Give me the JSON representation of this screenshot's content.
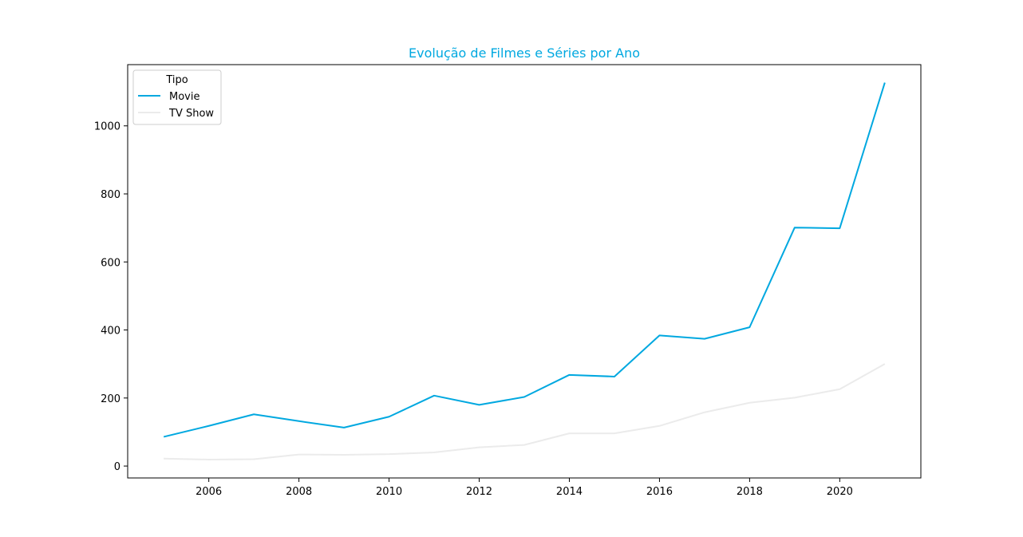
{
  "chart_data": {
    "type": "line",
    "title": "Evolução de Filmes e Séries por Ano",
    "title_color": "#00a8e0",
    "xlabel": "",
    "ylabel": "",
    "x": [
      2005,
      2006,
      2007,
      2008,
      2009,
      2010,
      2011,
      2012,
      2013,
      2014,
      2015,
      2016,
      2017,
      2018,
      2019,
      2020,
      2021
    ],
    "series": [
      {
        "name": "Movie",
        "color": "#00a8e0",
        "values": [
          86,
          118,
          152,
          132,
          113,
          145,
          207,
          180,
          203,
          268,
          263,
          384,
          374,
          408,
          701,
          699,
          1127
        ]
      },
      {
        "name": "TV Show",
        "color": "#ebebeb",
        "values": [
          22,
          19,
          20,
          34,
          33,
          35,
          40,
          55,
          62,
          96,
          96,
          118,
          158,
          186,
          201,
          226,
          300
        ]
      }
    ],
    "xlim": [
      2004.2,
      2021.8
    ],
    "ylim": [
      -35,
      1180
    ],
    "xticks": [
      2006,
      2008,
      2010,
      2012,
      2014,
      2016,
      2018,
      2020
    ],
    "yticks": [
      0,
      200,
      400,
      600,
      800,
      1000
    ],
    "legend": {
      "title": "Tipo",
      "placement": "top-left"
    },
    "grid": false
  }
}
